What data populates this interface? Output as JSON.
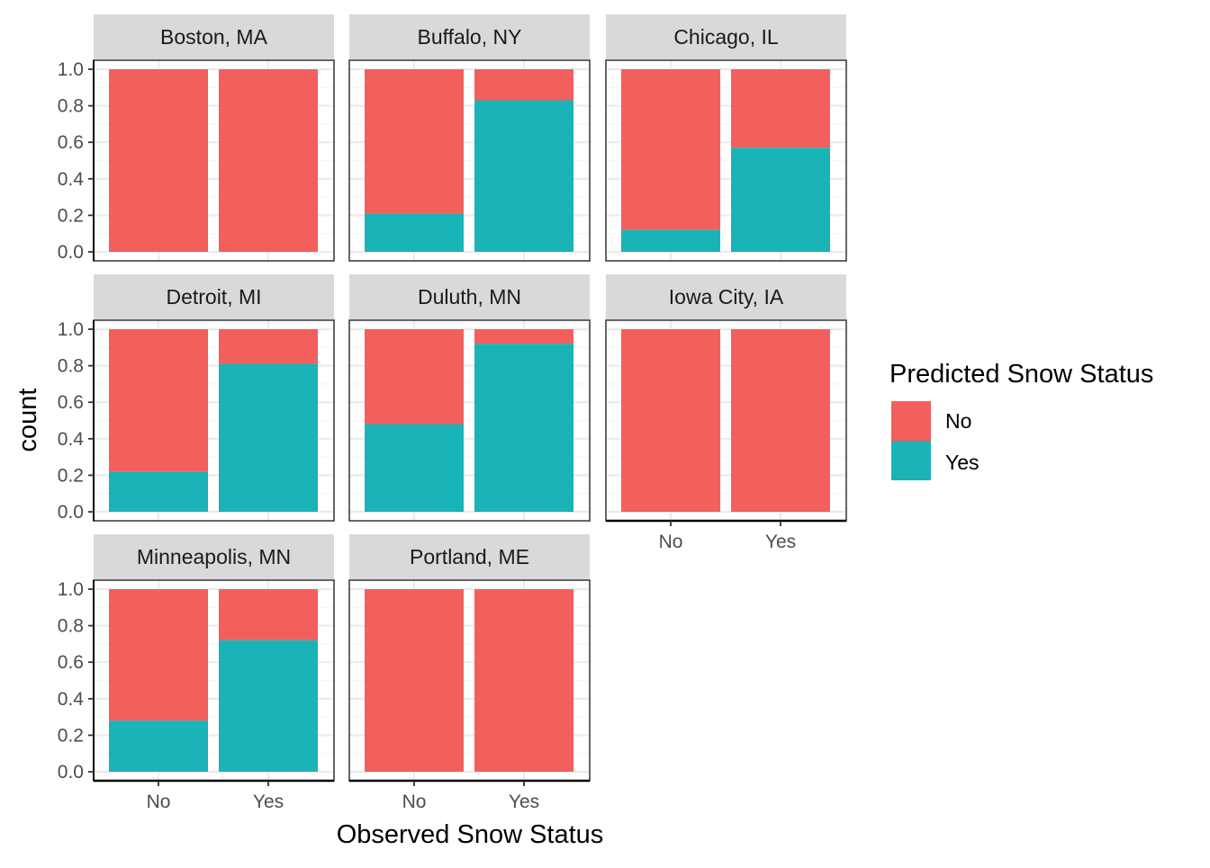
{
  "chart_data": {
    "type": "bar",
    "stacked": true,
    "position": "fill",
    "xlabel": "Observed Snow Status",
    "ylabel": "count",
    "ylim": [
      0,
      1
    ],
    "yticks": [
      "0.0",
      "0.2",
      "0.4",
      "0.6",
      "0.8",
      "1.0"
    ],
    "categories": [
      "No",
      "Yes"
    ],
    "grid": true,
    "legend": {
      "title": "Predicted Snow Status",
      "placement": "right",
      "entries": [
        {
          "name": "No",
          "color": "#F8766D"
        },
        {
          "name": "Yes",
          "color": "#00BFC4"
        }
      ]
    },
    "colors": {
      "No": "#F35F5C",
      "Yes": "#19B3B8"
    },
    "facets": [
      {
        "label": "Boston, MA",
        "yes_fraction": {
          "No": 0.0,
          "Yes": 0.0
        }
      },
      {
        "label": "Buffalo, NY",
        "yes_fraction": {
          "No": 0.21,
          "Yes": 0.83
        }
      },
      {
        "label": "Chicago, IL",
        "yes_fraction": {
          "No": 0.12,
          "Yes": 0.57
        }
      },
      {
        "label": "Detroit, MI",
        "yes_fraction": {
          "No": 0.22,
          "Yes": 0.81
        }
      },
      {
        "label": "Duluth, MN",
        "yes_fraction": {
          "No": 0.48,
          "Yes": 0.92
        }
      },
      {
        "label": "Iowa City, IA",
        "yes_fraction": {
          "No": 0.0,
          "Yes": 0.0
        }
      },
      {
        "label": "Minneapolis, MN",
        "yes_fraction": {
          "No": 0.28,
          "Yes": 0.72
        }
      },
      {
        "label": "Portland, ME",
        "yes_fraction": {
          "No": 0.0,
          "Yes": 0.0
        }
      }
    ]
  }
}
